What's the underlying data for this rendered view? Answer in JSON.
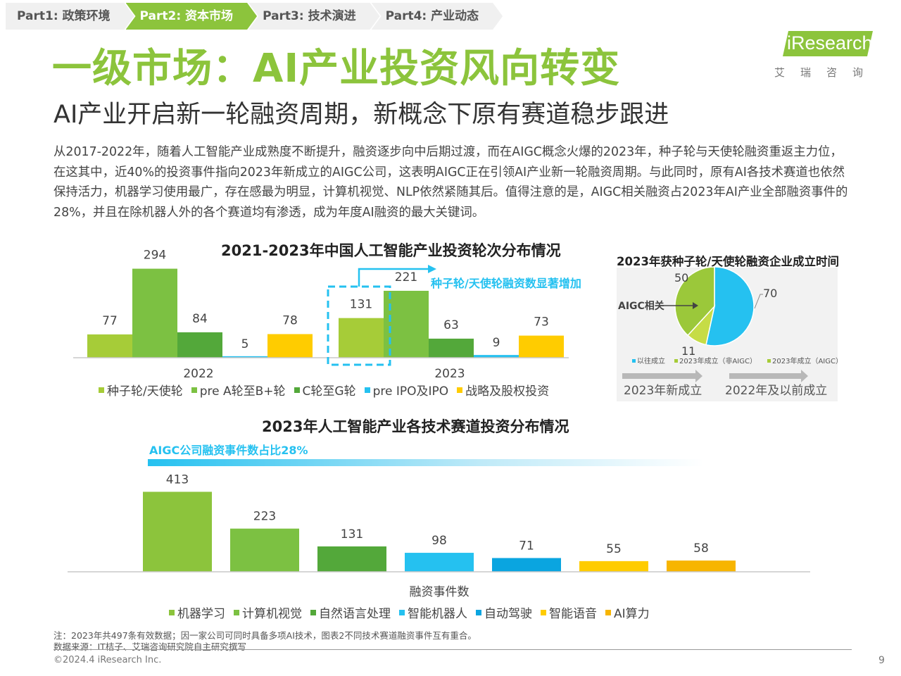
{
  "nav": {
    "tabs": [
      {
        "label": "Part1: 政策环境",
        "active": false
      },
      {
        "label": "Part2: 资本市场",
        "active": true
      },
      {
        "label": "Part3: 技术演进",
        "active": false
      },
      {
        "label": "Part4: 产业动态",
        "active": false
      }
    ]
  },
  "logo": {
    "text": "iResearch",
    "sub": "艾瑞咨询"
  },
  "title": "一级市场：AI产业投资风向转变",
  "subtitle": "AI产业开启新一轮融资周期，新概念下原有赛道稳步跟进",
  "paragraph": "从2017-2022年，随着人工智能产业成熟度不断提升，融资逐步向中后期过渡，而在AIGC概念火爆的2023年，种子轮与天使轮融资重返主力位，在这其中，近40%的投资事件指向2023年新成立的AIGC公司，这表明AIGC正在引领AI产业新一轮融资周期。与此同时，原有AI各技术赛道也依然保持活力，机器学习使用最广，存在感最为明显，计算机视觉、NLP依然紧随其后。值得注意的是，AIGC相关融资占2023年AI产业全部融资事件的28%，并且在除机器人外的各个赛道均有渗透，成为年度AI融资的最大关键词。",
  "colors": {
    "accent": "#8cc43c",
    "seed": "#a6cc38",
    "preA": "#7cc142",
    "c": "#53a83a",
    "preIPO": "#25c1f0",
    "strategic": "#ffcc00",
    "ml": "#8cc43c",
    "cv": "#7cc142",
    "nlp": "#53a83a",
    "robot": "#25c1f0",
    "auto": "#0aa5e0",
    "voice": "#ffcc00",
    "compute": "#f7b500"
  },
  "chart_data": [
    {
      "type": "bar",
      "title": "2021-2023年中国人工智能产业投资轮次分布情况",
      "categories": [
        "2022",
        "2023"
      ],
      "series": [
        {
          "name": "种子轮/天使轮",
          "values": [
            77,
            131
          ]
        },
        {
          "name": "pre A轮至B+轮",
          "values": [
            294,
            221
          ]
        },
        {
          "name": "C轮至G轮",
          "values": [
            84,
            63
          ]
        },
        {
          "name": "pre IPO及IPO",
          "values": [
            5,
            9
          ]
        },
        {
          "name": "战略及股权投资",
          "values": [
            78,
            73
          ]
        }
      ],
      "annotation": "种子轮/天使轮融资数显著增加",
      "legend": "bottom"
    },
    {
      "type": "pie",
      "title": "2023年获种子轮/天使轮融资企业成立时间",
      "slices": [
        {
          "name": "以往成立",
          "value": 70
        },
        {
          "name": "2023年成立（非AIGC）",
          "value": 11
        },
        {
          "name": "2023年成立（AIGC）",
          "value": 50
        }
      ],
      "annotation": "AIGC相关",
      "bottom_labels": [
        "2023年新成立",
        "2022年及以前成立"
      ],
      "legend": "bottom"
    },
    {
      "type": "bar",
      "title": "2023年人工智能产业各技术赛道投资分布情况",
      "categories": [
        "机器学习",
        "计算机视觉",
        "自然语言处理",
        "智能机器人",
        "自动驾驶",
        "智能语音",
        "AI算力"
      ],
      "values": [
        413,
        223,
        131,
        98,
        71,
        55,
        58
      ],
      "xlabel": "融资事件数",
      "annotation": "AIGC公司融资事件数占比28%",
      "legend": "bottom"
    }
  ],
  "footer": {
    "note": "注：2023年共497条有效数据；因一家公司可同时具备多项AI技术，图表2不同技术赛道融资事件互有重合。",
    "source": "数据来源：IT桔子、艾瑞咨询研究院自主研究撰写",
    "copyright": "©2024.4 iResearch Inc.",
    "page": "9"
  }
}
